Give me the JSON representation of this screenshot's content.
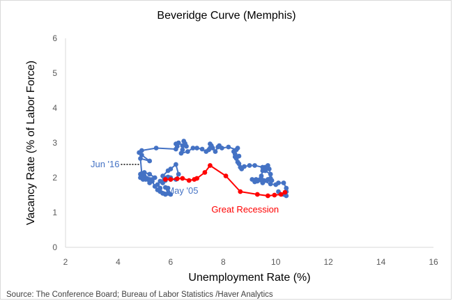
{
  "chart_data": {
    "type": "scatter",
    "title": "Beveridge Curve (Memphis)",
    "xlabel": "Unemployment Rate (%)",
    "ylabel": "Vacancy Rate (% of Labor Force)",
    "xlim": [
      2,
      16
    ],
    "ylim": [
      0,
      6
    ],
    "xticks": [
      "2",
      "4",
      "6",
      "8",
      "10",
      "12",
      "14",
      "16"
    ],
    "yticks": [
      "0",
      "1",
      "2",
      "3",
      "4",
      "5",
      "6"
    ],
    "grid": false,
    "source": "Source: The Conference Board; Bureau of Labor Statistics /Haver Analytics",
    "series": [
      {
        "name": "Memphis",
        "color": "#4472c4",
        "points": [
          [
            5.8,
            1.92
          ],
          [
            5.9,
            2.02
          ],
          [
            6.0,
            2.0
          ],
          [
            5.85,
            2.0
          ],
          [
            6.0,
            1.95
          ],
          [
            6.2,
            1.95
          ],
          [
            6.3,
            2.1
          ],
          [
            6.2,
            2.38
          ],
          [
            6.0,
            2.25
          ],
          [
            5.9,
            2.2
          ],
          [
            5.7,
            2.05
          ],
          [
            5.7,
            1.85
          ],
          [
            5.6,
            1.9
          ],
          [
            5.5,
            1.8
          ],
          [
            5.6,
            1.7
          ],
          [
            5.6,
            1.6
          ],
          [
            5.7,
            1.55
          ],
          [
            5.8,
            1.52
          ],
          [
            6.0,
            1.52
          ],
          [
            5.9,
            1.7
          ],
          [
            5.8,
            1.72
          ],
          [
            5.9,
            1.55
          ],
          [
            5.5,
            1.65
          ],
          [
            5.4,
            1.75
          ],
          [
            5.3,
            1.9
          ],
          [
            5.2,
            1.95
          ],
          [
            5.1,
            1.98
          ],
          [
            5.0,
            2.05
          ],
          [
            4.9,
            2.05
          ],
          [
            4.85,
            2.1
          ],
          [
            4.85,
            2.0
          ],
          [
            4.95,
            1.95
          ],
          [
            5.05,
            1.95
          ],
          [
            5.2,
            1.85
          ],
          [
            5.3,
            1.95
          ],
          [
            5.4,
            2.0
          ],
          [
            5.2,
            2.1
          ],
          [
            5.0,
            2.15
          ],
          [
            4.9,
            2.12
          ],
          [
            4.85,
            2.55
          ],
          [
            5.2,
            2.48
          ],
          [
            4.9,
            2.65
          ],
          [
            4.8,
            2.72
          ],
          [
            4.9,
            2.78
          ],
          [
            5.45,
            2.85
          ],
          [
            6.2,
            2.82
          ],
          [
            6.25,
            2.9
          ],
          [
            6.2,
            2.97
          ],
          [
            6.3,
            3.0
          ],
          [
            6.45,
            2.92
          ],
          [
            6.6,
            2.9
          ],
          [
            6.5,
            3.05
          ],
          [
            6.55,
            2.98
          ],
          [
            6.45,
            2.8
          ],
          [
            6.4,
            2.7
          ],
          [
            6.65,
            2.75
          ],
          [
            6.85,
            2.85
          ],
          [
            7.0,
            2.85
          ],
          [
            7.2,
            2.82
          ],
          [
            7.35,
            2.75
          ],
          [
            7.45,
            2.8
          ],
          [
            7.5,
            2.85
          ],
          [
            7.5,
            2.97
          ],
          [
            7.55,
            2.92
          ],
          [
            7.6,
            2.85
          ],
          [
            7.7,
            2.75
          ],
          [
            7.8,
            2.88
          ],
          [
            7.85,
            2.92
          ],
          [
            7.95,
            2.85
          ],
          [
            8.2,
            2.88
          ],
          [
            8.5,
            2.8
          ],
          [
            8.55,
            2.85
          ],
          [
            8.4,
            2.75
          ],
          [
            8.45,
            2.68
          ],
          [
            8.45,
            2.6
          ],
          [
            8.6,
            2.62
          ],
          [
            8.5,
            2.55
          ],
          [
            8.55,
            2.45
          ],
          [
            8.6,
            2.4
          ],
          [
            8.65,
            2.3
          ],
          [
            8.7,
            2.25
          ],
          [
            8.8,
            2.32
          ],
          [
            9.0,
            2.35
          ],
          [
            9.2,
            2.35
          ],
          [
            9.5,
            2.3
          ],
          [
            9.6,
            2.3
          ],
          [
            9.7,
            2.35
          ],
          [
            9.75,
            2.25
          ],
          [
            9.8,
            2.1
          ],
          [
            9.6,
            2.2
          ],
          [
            9.5,
            2.2
          ],
          [
            9.45,
            2.05
          ],
          [
            9.55,
            1.92
          ],
          [
            9.7,
            1.95
          ],
          [
            9.8,
            1.98
          ],
          [
            9.85,
            1.92
          ],
          [
            9.5,
            1.85
          ],
          [
            9.25,
            1.95
          ],
          [
            9.1,
            1.95
          ],
          [
            9.3,
            1.9
          ],
          [
            9.2,
            1.88
          ],
          [
            9.4,
            1.95
          ],
          [
            9.8,
            1.82
          ],
          [
            10.0,
            1.8
          ],
          [
            10.1,
            1.85
          ],
          [
            10.3,
            1.85
          ],
          [
            10.4,
            1.7
          ],
          [
            10.4,
            1.6
          ],
          [
            10.35,
            1.55
          ],
          [
            10.4,
            1.48
          ],
          [
            10.3,
            1.52
          ],
          [
            10.1,
            1.6
          ]
        ]
      },
      {
        "name": "Great Recession",
        "color": "#ff0000",
        "points": [
          [
            5.8,
            1.95
          ],
          [
            6.0,
            1.95
          ],
          [
            6.25,
            1.97
          ],
          [
            6.45,
            1.98
          ],
          [
            6.7,
            1.92
          ],
          [
            6.9,
            1.95
          ],
          [
            7.0,
            1.98
          ],
          [
            7.3,
            2.15
          ],
          [
            7.5,
            2.35
          ],
          [
            8.1,
            2.05
          ],
          [
            8.65,
            1.6
          ],
          [
            9.3,
            1.52
          ],
          [
            9.7,
            1.48
          ],
          [
            9.95,
            1.5
          ],
          [
            10.2,
            1.52
          ],
          [
            10.35,
            1.58
          ]
        ]
      }
    ],
    "annotations": [
      {
        "text": "Jun '16",
        "color": "#4472c4",
        "at": [
          4.85,
          2.38
        ]
      },
      {
        "text": "May '05",
        "color": "#4472c4",
        "at": [
          5.8,
          1.92
        ]
      },
      {
        "text": "Great Recession",
        "color": "#ff0000"
      }
    ]
  }
}
